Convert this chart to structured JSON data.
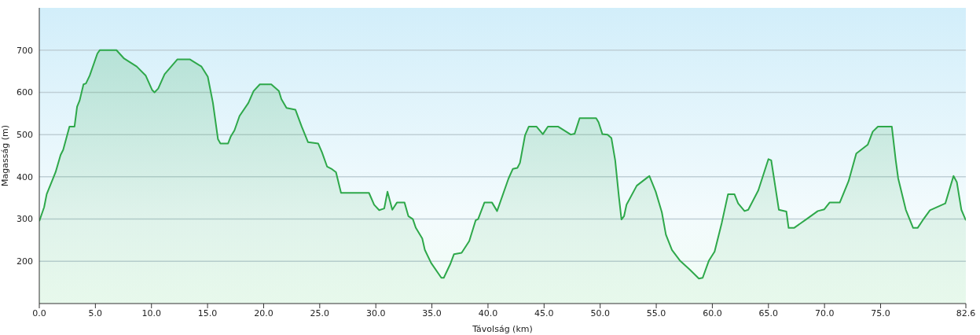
{
  "chart_data": {
    "type": "area",
    "xlabel": "Távolság (km)",
    "ylabel": "Magasság (m)",
    "xlim": [
      0,
      82.6
    ],
    "ylim": [
      100,
      800
    ],
    "xticks": [
      {
        "value": 0,
        "label": "0.0"
      },
      {
        "value": 5,
        "label": "5.0"
      },
      {
        "value": 10,
        "label": "10.0"
      },
      {
        "value": 15,
        "label": "15.0"
      },
      {
        "value": 20,
        "label": "20.0"
      },
      {
        "value": 25,
        "label": "25.0"
      },
      {
        "value": 30,
        "label": "30.0"
      },
      {
        "value": 35,
        "label": "35.0"
      },
      {
        "value": 40,
        "label": "40.0"
      },
      {
        "value": 45,
        "label": "45.0"
      },
      {
        "value": 50,
        "label": "50.0"
      },
      {
        "value": 55,
        "label": "55.0"
      },
      {
        "value": 60,
        "label": "60.0"
      },
      {
        "value": 65,
        "label": "65.0"
      },
      {
        "value": 70,
        "label": "70.0"
      },
      {
        "value": 75,
        "label": "75.0"
      },
      {
        "value": 82.6,
        "label": "82.6"
      }
    ],
    "yticks": [
      200,
      300,
      400,
      500,
      600,
      700
    ],
    "grid": "y",
    "legend": false,
    "marker": "none",
    "line_style": "solid",
    "x": [
      0,
      0.43,
      0.66,
      1.22,
      1.45,
      1.9,
      2.13,
      2.69,
      3.14,
      3.37,
      3.6,
      3.94,
      4.16,
      4.5,
      5.18,
      5.4,
      6.88,
      7.56,
      8.69,
      9.48,
      10.05,
      10.27,
      10.6,
      11.17,
      12.3,
      13.44,
      14.46,
      15.02,
      15.48,
      15.93,
      16.15,
      16.83,
      17.06,
      17.4,
      17.85,
      18.64,
      19.1,
      19.66,
      20.68,
      21.36,
      21.58,
      22.04,
      22.83,
      23.39,
      23.96,
      24.86,
      25.2,
      25.66,
      26.1,
      26.45,
      26.9,
      29.39,
      29.85,
      30.3,
      30.75,
      31.04,
      31.47,
      31.88,
      32.56,
      32.9,
      33.3,
      33.57,
      34.14,
      34.37,
      34.93,
      35.84,
      36.06,
      36.63,
      36.97,
      37.65,
      38.33,
      38.9,
      39.12,
      39.68,
      40.36,
      40.81,
      41.83,
      42.22,
      42.62,
      42.85,
      43.3,
      43.64,
      44.32,
      44.89,
      45.34,
      46.24,
      47.38,
      47.72,
      48.17,
      49.64,
      49.86,
      50.2,
      50.66,
      51.0,
      51.34,
      51.67,
      51.9,
      52.13,
      52.35,
      53.26,
      54.28,
      54.39,
      54.95,
      55.5,
      55.86,
      56.4,
      57.1,
      58.0,
      58.8,
      59.14,
      59.7,
      60.2,
      60.84,
      61.4,
      61.97,
      62.3,
      62.87,
      63.2,
      64.1,
      65.0,
      65.25,
      65.93,
      66.6,
      66.8,
      67.28,
      68.4,
      69.4,
      69.98,
      70.45,
      71.36,
      72.15,
      72.83,
      73.85,
      74.3,
      74.76,
      76.0,
      76.35,
      76.57,
      77.25,
      77.9,
      78.3,
      78.75,
      79.4,
      80.77,
      81.5,
      81.8,
      82.2,
      82.6
    ],
    "series": [
      {
        "color": "#2ea84a",
        "values": [
          295,
          328,
          359,
          396,
          411,
          452,
          464,
          519,
          519,
          566,
          581,
          619,
          621,
          640,
          692,
          700,
          700,
          680,
          661,
          640,
          606,
          600,
          609,
          643,
          678,
          678,
          661,
          637,
          575,
          489,
          479,
          479,
          495,
          510,
          544,
          575,
          603,
          619,
          619,
          603,
          584,
          563,
          559,
          519,
          482,
          479,
          458,
          424,
          418,
          411,
          362,
          362,
          334,
          321,
          325,
          365,
          322,
          339,
          339,
          307,
          300,
          279,
          254,
          227,
          196,
          161,
          161,
          193,
          217,
          220,
          248,
          297,
          300,
          339,
          339,
          319,
          396,
          419,
          421,
          433,
          498,
          519,
          519,
          501,
          519,
          519,
          500,
          502,
          539,
          539,
          529,
          501,
          500,
          492,
          439,
          353,
          299,
          307,
          334,
          379,
          400,
          402,
          365,
          316,
          263,
          227,
          202,
          180,
          159,
          161,
          202,
          223,
          291,
          359,
          359,
          337,
          319,
          322,
          368,
          442,
          439,
          322,
          318,
          279,
          279,
          300,
          319,
          323,
          339,
          339,
          390,
          455,
          476,
          507,
          519,
          519,
          439,
          396,
          322,
          279,
          279,
          297,
          321,
          337,
          402,
          387,
          322,
          297
        ]
      }
    ]
  }
}
